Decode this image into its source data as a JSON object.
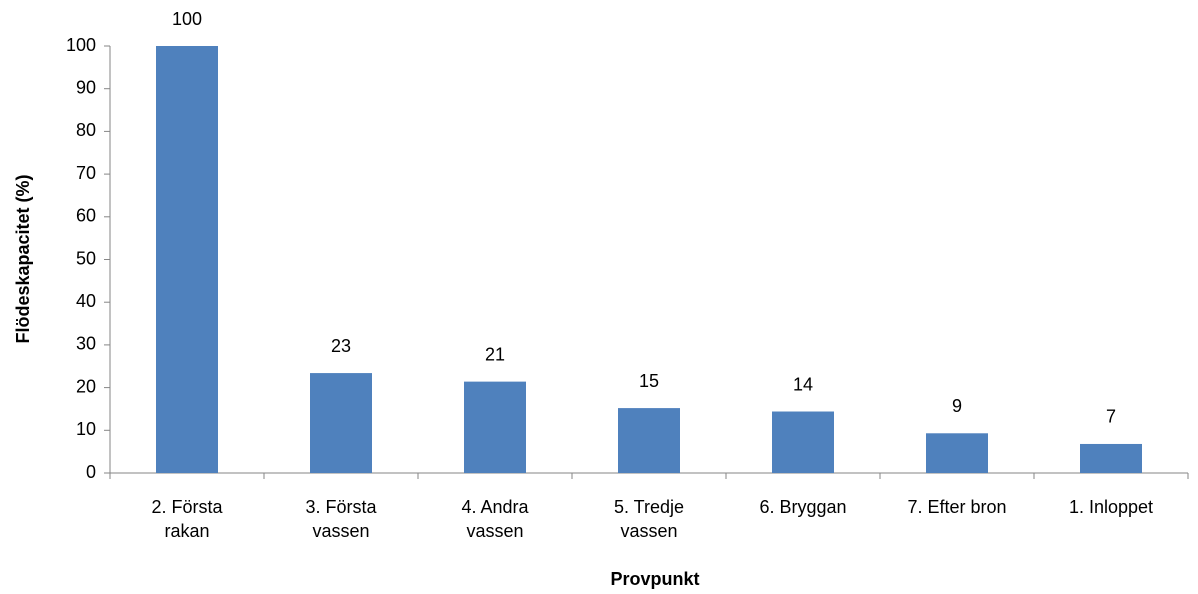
{
  "chart_data": {
    "type": "bar",
    "categories": [
      "2. Första rakan",
      "3. Första vassen",
      "4. Andra vassen",
      "5. Tredje vassen",
      "6. Bryggan",
      "7. Efter bron",
      "1. Inloppet"
    ],
    "values": [
      100,
      23.4,
      21.4,
      15.2,
      14.4,
      9.3,
      6.8
    ],
    "value_labels": [
      "100",
      "23",
      "21",
      "15",
      "14",
      "9",
      "7"
    ],
    "color": "#4f81bd",
    "ylim": [
      0,
      100
    ],
    "yticks": [
      0,
      10,
      20,
      30,
      40,
      50,
      60,
      70,
      80,
      90,
      100
    ],
    "x_label": "Provpunkt",
    "y_label": "Flödeskapacitet (%)",
    "grid": false
  }
}
